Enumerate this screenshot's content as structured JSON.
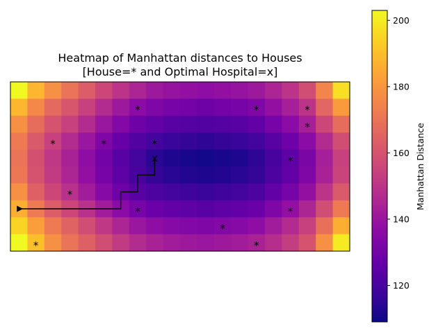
{
  "chart_data": {
    "type": "heatmap",
    "title_line1": "Heatmap of Manhattan distances to Houses",
    "title_line2": "[House=* and Optimal Hospital=x]",
    "colorbar": {
      "label": "Manhattan Distance",
      "range": [
        109,
        203
      ],
      "ticks": [
        120,
        140,
        160,
        180,
        200
      ],
      "colormap": "plasma"
    },
    "grid": {
      "rows": 10,
      "cols": 20
    },
    "values": [
      [
        203,
        188,
        178,
        170,
        163,
        156,
        150,
        145,
        141,
        139,
        138,
        137,
        138,
        139,
        141,
        145,
        150,
        158,
        175,
        197
      ],
      [
        188,
        176,
        167,
        161,
        154,
        147,
        141,
        136,
        133,
        131,
        130,
        129,
        130,
        131,
        133,
        138,
        143,
        150,
        166,
        181
      ],
      [
        178,
        168,
        160,
        154,
        147,
        140,
        134,
        129,
        126,
        124,
        123,
        122,
        123,
        124,
        126,
        131,
        136,
        143,
        156,
        168
      ],
      [
        172,
        162,
        154,
        147,
        140,
        133,
        127,
        122,
        119,
        117,
        116,
        115,
        116,
        117,
        119,
        124,
        129,
        136,
        147,
        158
      ],
      [
        170,
        159,
        151,
        144,
        137,
        130,
        124,
        119,
        114,
        112,
        111,
        110,
        111,
        112,
        115,
        120,
        125,
        132,
        143,
        154
      ],
      [
        171,
        160,
        152,
        145,
        138,
        131,
        125,
        120,
        116,
        114,
        113,
        112,
        113,
        114,
        116,
        121,
        126,
        133,
        144,
        155
      ],
      [
        178,
        164,
        156,
        149,
        142,
        135,
        129,
        124,
        121,
        119,
        118,
        117,
        118,
        119,
        121,
        126,
        131,
        138,
        150,
        162
      ],
      [
        186,
        172,
        163,
        156,
        149,
        142,
        136,
        131,
        128,
        126,
        125,
        124,
        125,
        126,
        128,
        133,
        138,
        145,
        158,
        172
      ],
      [
        195,
        182,
        172,
        165,
        158,
        151,
        145,
        140,
        137,
        135,
        134,
        133,
        134,
        135,
        137,
        142,
        147,
        154,
        169,
        186
      ],
      [
        203,
        190,
        178,
        170,
        164,
        158,
        152,
        147,
        144,
        142,
        141,
        140,
        141,
        142,
        144,
        148,
        153,
        160,
        178,
        200
      ]
    ],
    "houses": [
      {
        "col": 7,
        "row": 1
      },
      {
        "col": 14,
        "row": 1
      },
      {
        "col": 17,
        "row": 1
      },
      {
        "col": 17,
        "row": 2
      },
      {
        "col": 2,
        "row": 3
      },
      {
        "col": 5,
        "row": 3
      },
      {
        "col": 8,
        "row": 3
      },
      {
        "col": 16,
        "row": 4
      },
      {
        "col": 3,
        "row": 6
      },
      {
        "col": 7,
        "row": 7
      },
      {
        "col": 16,
        "row": 7
      },
      {
        "col": 12,
        "row": 8
      },
      {
        "col": 1,
        "row": 9
      },
      {
        "col": 14,
        "row": 9
      }
    ],
    "hospital": {
      "col": 8,
      "row": 4
    },
    "house_marker": "*",
    "hospital_marker": "x",
    "path": [
      {
        "col": 0,
        "row": 7.5
      },
      {
        "col": 6,
        "row": 7.5
      },
      {
        "col": 6,
        "row": 6.5
      },
      {
        "col": 7,
        "row": 6.5
      },
      {
        "col": 7,
        "row": 5.5
      },
      {
        "col": 8,
        "row": 5.5
      },
      {
        "col": 8,
        "row": 4.5
      }
    ]
  }
}
